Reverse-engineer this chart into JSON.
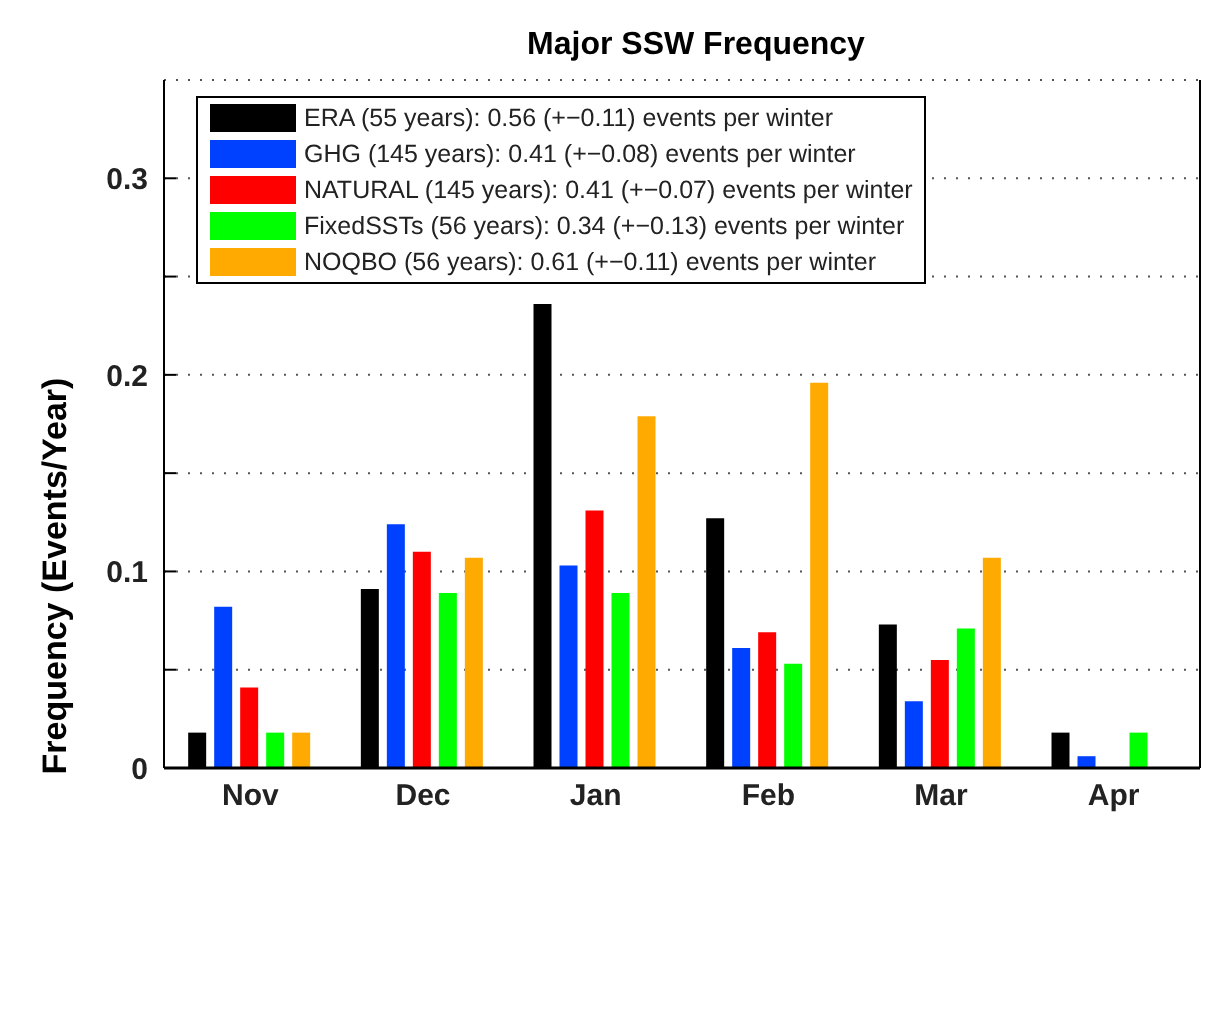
{
  "chart_data": {
    "type": "bar",
    "title": "Major SSW Frequency",
    "ylabel": "Frequency (Events/Year)",
    "categories": [
      "Nov",
      "Dec",
      "Jan",
      "Feb",
      "Mar",
      "Apr"
    ],
    "series": [
      {
        "name": "ERA (55 years): 0.56 (+−0.11) events per winter",
        "color": "#000000",
        "values": [
          0.018,
          0.091,
          0.236,
          0.127,
          0.073,
          0.018
        ]
      },
      {
        "name": "GHG (145 years): 0.41 (+−0.08) events per winter",
        "color": "#0040ff",
        "values": [
          0.082,
          0.124,
          0.103,
          0.061,
          0.034,
          0.006
        ]
      },
      {
        "name": "NATURAL (145 years): 0.41 (+−0.07) events per winter",
        "color": "#ff0000",
        "values": [
          0.041,
          0.11,
          0.131,
          0.069,
          0.055,
          0
        ]
      },
      {
        "name": "FixedSSTs (56 years): 0.34 (+−0.13) events per winter",
        "color": "#00ff00",
        "values": [
          0.018,
          0.089,
          0.089,
          0.053,
          0.071,
          0.018
        ]
      },
      {
        "name": "NOQBO (56 years): 0.61 (+−0.11) events per winter",
        "color": "#ffaa00",
        "values": [
          0.018,
          0.107,
          0.179,
          0.196,
          0.107,
          0
        ]
      }
    ],
    "ylim": [
      0,
      0.35
    ],
    "yticks": [
      0,
      {
        "value": 0.05,
        "label": null
      },
      0.1,
      {
        "value": 0.15,
        "label": null
      },
      0.2,
      {
        "value": 0.25,
        "label": null
      },
      0.3
    ],
    "grid": "y",
    "legend": "top left"
  }
}
